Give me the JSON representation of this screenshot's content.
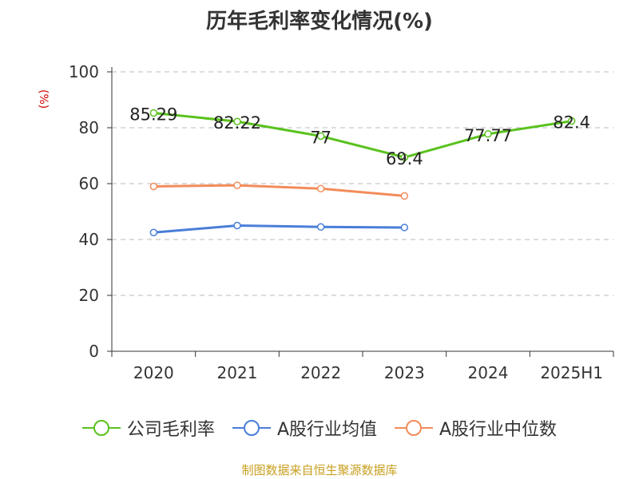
{
  "chart_data": {
    "type": "line",
    "title": "历年毛利率变化情况(%)",
    "unit_label": "(%)",
    "categories": [
      "2020",
      "2021",
      "2022",
      "2023",
      "2024",
      "2025H1"
    ],
    "yticks": [
      "0",
      "20",
      "40",
      "60",
      "80",
      "100"
    ],
    "ylim": [
      0,
      100
    ],
    "grid": true,
    "legend_position": "bottom",
    "series": [
      {
        "name": "公司毛利率",
        "color": "#5ac21e",
        "values": [
          85.29,
          82.22,
          77,
          69.4,
          77.77,
          82.4
        ],
        "labels": [
          "85.29",
          "82.22",
          "77",
          "69.4",
          "77.77",
          "82.4"
        ]
      },
      {
        "name": "A股行业均值",
        "color": "#4a7ed8",
        "values": [
          42.5,
          45,
          44.5,
          44.3,
          null,
          null
        ]
      },
      {
        "name": "A股行业中位数",
        "color": "#f28c5b",
        "values": [
          59,
          59.4,
          58.2,
          55.6,
          null,
          null
        ]
      }
    ]
  },
  "source_text": "制图数据来自恒生聚源数据库"
}
